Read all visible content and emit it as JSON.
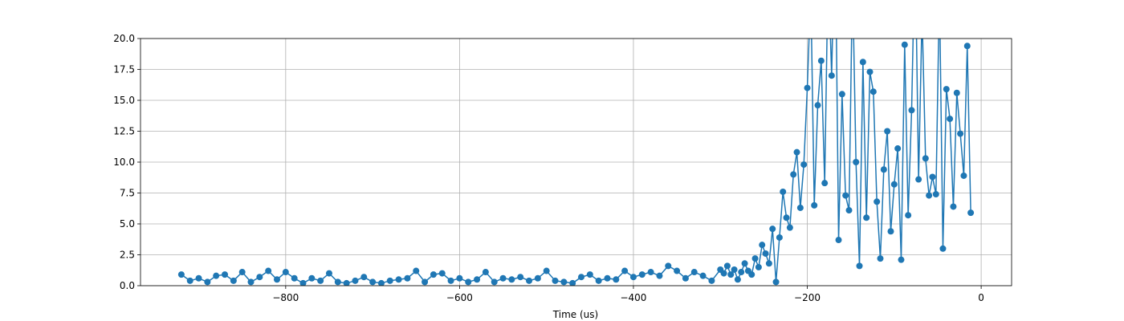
{
  "chart_data": {
    "type": "line",
    "xlabel": "Time (us)",
    "color": "#1f77b4",
    "grid": true,
    "xlim": [
      -967,
      35
    ],
    "ylim": [
      0,
      20
    ],
    "xticks": [
      {
        "value": -800,
        "label": "−800"
      },
      {
        "value": -600,
        "label": "−600"
      },
      {
        "value": -400,
        "label": "−400"
      },
      {
        "value": -200,
        "label": "−200"
      },
      0
    ],
    "yticks": [
      {
        "value": 0,
        "label": "0.0"
      },
      2.5,
      {
        "value": 5,
        "label": "5.0"
      },
      7.5,
      {
        "value": 10,
        "label": "10.0"
      },
      12.5,
      {
        "value": 15,
        "label": "15.0"
      },
      17.5,
      {
        "value": 20,
        "label": "20.0"
      }
    ],
    "x": [
      -920,
      -910,
      -900,
      -890,
      -880,
      -870,
      -860,
      -850,
      -840,
      -830,
      -820,
      -810,
      -800,
      -790,
      -780,
      -770,
      -760,
      -750,
      -740,
      -730,
      -720,
      -710,
      -700,
      -690,
      -680,
      -670,
      -660,
      -650,
      -640,
      -630,
      -620,
      -610,
      -600,
      -590,
      -580,
      -570,
      -560,
      -550,
      -540,
      -530,
      -520,
      -510,
      -500,
      -490,
      -480,
      -470,
      -460,
      -450,
      -440,
      -430,
      -420,
      -410,
      -400,
      -390,
      -380,
      -370,
      -360,
      -350,
      -340,
      -330,
      -320,
      -310,
      -300,
      -296,
      -292,
      -288,
      -284,
      -280,
      -276,
      -272,
      -268,
      -264,
      -260,
      -256,
      -252,
      -248,
      -244,
      -240,
      -236,
      -232,
      -228,
      -224,
      -220,
      -216,
      -212,
      -208,
      -204,
      -200,
      -196,
      -192,
      -188,
      -184,
      -180,
      -176,
      -172,
      -168,
      -164,
      -160,
      -156,
      -152,
      -148,
      -144,
      -140,
      -136,
      -132,
      -128,
      -124,
      -120,
      -116,
      -112,
      -108,
      -104,
      -100,
      -96,
      -92,
      -88,
      -84,
      -80,
      -76,
      -72,
      -68,
      -64,
      -60,
      -56,
      -52,
      -48,
      -44,
      -40,
      -36,
      -32,
      -28,
      -24,
      -20,
      -16,
      -12
    ],
    "values": [
      0.9,
      0.4,
      0.6,
      0.3,
      0.8,
      0.9,
      0.4,
      1.1,
      0.3,
      0.7,
      1.2,
      0.5,
      1.1,
      0.6,
      0.2,
      0.6,
      0.4,
      1.0,
      0.3,
      0.2,
      0.4,
      0.7,
      0.3,
      0.2,
      0.4,
      0.5,
      0.6,
      1.2,
      0.3,
      0.9,
      1.0,
      0.4,
      0.6,
      0.3,
      0.5,
      1.1,
      0.3,
      0.6,
      0.5,
      0.7,
      0.4,
      0.6,
      1.2,
      0.4,
      0.3,
      0.2,
      0.7,
      0.9,
      0.4,
      0.6,
      0.5,
      1.2,
      0.7,
      0.9,
      1.1,
      0.8,
      1.6,
      1.2,
      0.6,
      1.1,
      0.8,
      0.4,
      1.3,
      1.0,
      1.6,
      0.9,
      1.3,
      0.5,
      1.1,
      1.8,
      1.2,
      0.9,
      2.2,
      1.5,
      3.3,
      2.6,
      1.8,
      4.6,
      0.3,
      3.9,
      7.6,
      5.5,
      4.7,
      9.0,
      10.8,
      6.3,
      9.8,
      16.0,
      24,
      6.5,
      14.6,
      18.2,
      8.3,
      26,
      17.0,
      30,
      3.7,
      15.5,
      7.3,
      6.1,
      25,
      10.0,
      1.6,
      18.1,
      5.5,
      17.3,
      15.7,
      6.8,
      2.2,
      9.4,
      12.5,
      4.4,
      8.2,
      11.1,
      2.1,
      19.5,
      5.7,
      14.2,
      28,
      8.6,
      22,
      10.3,
      7.3,
      8.8,
      7.4,
      24,
      3.0,
      15.9,
      13.5,
      6.4,
      15.6,
      12.3,
      8.9,
      19.4,
      5.9
    ]
  }
}
